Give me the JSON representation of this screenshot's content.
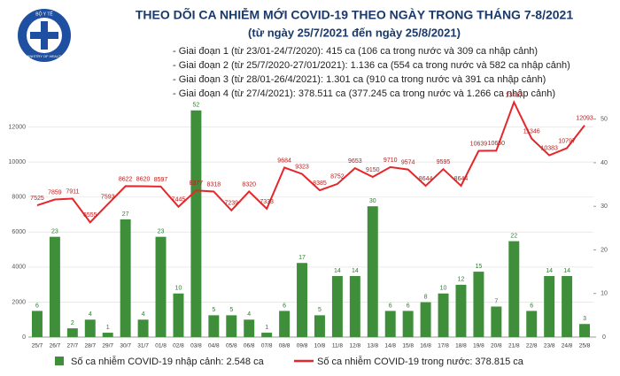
{
  "logo": {
    "top": "BỘ Y TẾ",
    "bottom": "MINISTRY OF HEALTH"
  },
  "chart_data": {
    "type": "bar-line",
    "title": "THEO DÕI CA NHIỄM MỚI COVID-19 THEO NGÀY TRONG THÁNG 7-8/2021",
    "subtitle": "(từ ngày 25/7/2021 đến ngày 25/8/2021)",
    "notes": [
      "- Giai đoạn 1 (từ 23/01-24/7/2020): 415 ca (106 ca trong nước và 309 ca nhập cảnh)",
      "- Giai đoạn 2 (từ 25/7/2020-27/01/2021): 1.136 ca (554 ca trong nước và 582 ca nhập cảnh)",
      "- Giai đoạn 3 (từ 28/01-26/4/2021): 1.301 ca (910 ca trong nước và 391 ca nhập cảnh)",
      "- Giai đoạn 4 (từ 27/4/2021): 378.511 ca (377.245 ca trong nước và 1.266 ca nhập cảnh)"
    ],
    "categories": [
      "25/7",
      "26/7",
      "27/7",
      "28/7",
      "29/7",
      "30/7",
      "31/7",
      "01/8",
      "02/8",
      "03/8",
      "04/8",
      "05/8",
      "06/8",
      "07/8",
      "08/8",
      "09/8",
      "10/8",
      "11/8",
      "12/8",
      "13/8",
      "14/8",
      "15/8",
      "16/8",
      "17/8",
      "18/8",
      "19/8",
      "20/8",
      "21/8",
      "22/8",
      "23/8",
      "24/8",
      "25/8"
    ],
    "series": [
      {
        "name": "Số ca nhiễm COVID-19 nhập cảnh: 2.548 ca",
        "type": "bar",
        "axis": "y2",
        "color": "#3f8f3a",
        "values": [
          6,
          23,
          2,
          4,
          1,
          27,
          4,
          23,
          10,
          52,
          5,
          5,
          4,
          1,
          6,
          17,
          5,
          14,
          14,
          30,
          6,
          6,
          8,
          10,
          12,
          15,
          7,
          22,
          6,
          14,
          14,
          3
        ]
      },
      {
        "name": "Số ca nhiễm COVID-19 trong nước: 378.815 ca",
        "type": "line",
        "color": "#e5262b",
        "values": [
          7525,
          7859,
          7911,
          6555,
          7593,
          8622,
          8620,
          8597,
          7445,
          8377,
          8318,
          7239,
          8320,
          7333,
          9684,
          9323,
          8385,
          8752,
          9653,
          9150,
          9710,
          9574,
          8644,
          9595,
          8644,
          10639,
          10650,
          13417,
          11346,
          10383,
          10797,
          12093
        ]
      }
    ],
    "ylim": [
      0,
      13700
    ],
    "yticks": [
      0,
      2000,
      4000,
      6000,
      8000,
      10000,
      12000
    ],
    "y2lim": [
      0,
      55
    ],
    "y2ticks": [
      0,
      10,
      20,
      30,
      40,
      50
    ],
    "grid": true
  }
}
